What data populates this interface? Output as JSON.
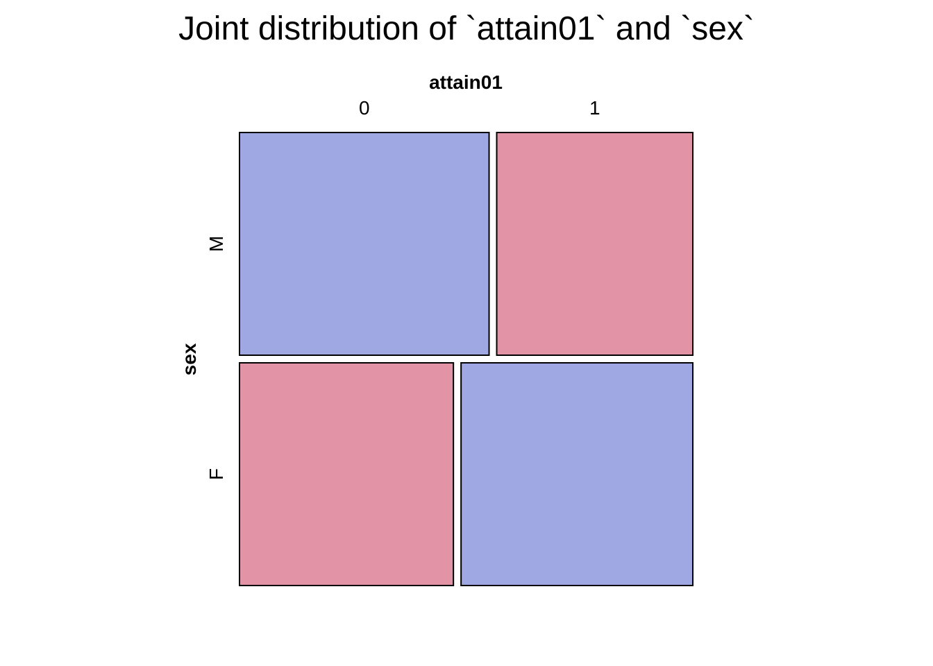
{
  "chart_data": {
    "type": "mosaic",
    "title": "Joint distribution of `attain01` and `sex`",
    "x_variable": "attain01",
    "y_variable": "sex",
    "x_levels": [
      "0",
      "1"
    ],
    "y_levels": [
      "M",
      "F"
    ],
    "row_proportions": [
      0.5,
      0.5
    ],
    "conditional_proportions": {
      "M": {
        "0": 0.56,
        "1": 0.44
      },
      "F": {
        "0": 0.48,
        "1": 0.52
      }
    },
    "colors": {
      "more_than_expected": "#9fa8e3",
      "less_than_expected": "#e293a6",
      "border": "#000000"
    },
    "cell_shading": {
      "M": {
        "0": "more_than_expected",
        "1": "less_than_expected"
      },
      "F": {
        "0": "less_than_expected",
        "1": "more_than_expected"
      }
    }
  }
}
